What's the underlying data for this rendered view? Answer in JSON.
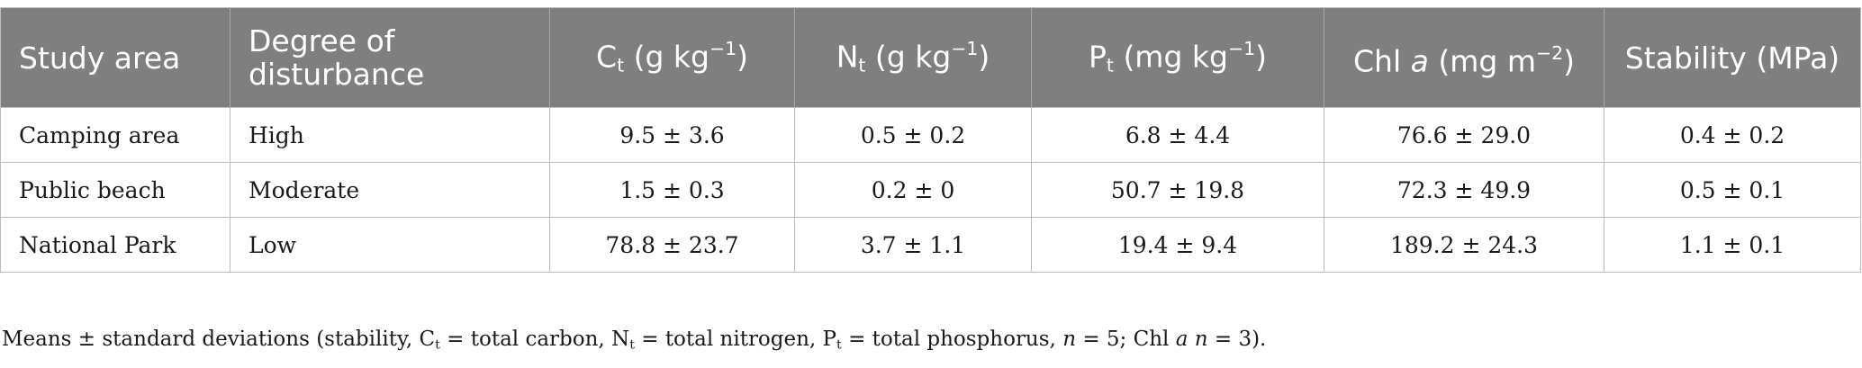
{
  "table": {
    "headers": {
      "study_area": "Study area",
      "disturbance": "Degree of disturbance",
      "ct": {
        "base": "C",
        "sub": "t",
        "unit_pre": "(g kg",
        "sup": "−1",
        "unit_post": ")"
      },
      "nt": {
        "base": "N",
        "sub": "t",
        "unit_pre": "(g kg",
        "sup": "−1",
        "unit_post": ")"
      },
      "pt": {
        "base": "P",
        "sub": "t",
        "unit_pre": "(mg kg",
        "sup": "−1",
        "unit_post": ")"
      },
      "chl": {
        "base": "Chl ",
        "italic": "a",
        "unit_pre": " (mg m",
        "sup": "−2",
        "unit_post": ")"
      },
      "stability": "Stability (MPa)"
    },
    "rows": [
      {
        "area": "Camping area",
        "disturbance": "High",
        "ct": "9.5 ± 3.6",
        "nt": "0.5 ± 0.2",
        "pt": "6.8 ± 4.4",
        "chl": "76.6 ± 29.0",
        "stability": "0.4 ± 0.2"
      },
      {
        "area": "Public beach",
        "disturbance": "Moderate",
        "ct": "1.5 ± 0.3",
        "nt": "0.2 ± 0",
        "pt": "50.7 ± 19.8",
        "chl": "72.3 ± 49.9",
        "stability": "0.5 ± 0.1"
      },
      {
        "area": "National Park",
        "disturbance": "Low",
        "ct": "78.8 ± 23.7",
        "nt": "3.7 ± 1.1",
        "pt": "19.4 ± 9.4",
        "chl": "189.2 ± 24.3",
        "stability": "1.1 ± 0.1"
      }
    ]
  },
  "footnote": {
    "p1": "Means ± standard deviations (stability, C",
    "s1": "t",
    "p2": " = total carbon, N",
    "s2": "t",
    "p3": " = total nitrogen, P",
    "s3": "t",
    "p4": " = total phosphorus, ",
    "n1": "n",
    "p5": " = 5; Chl ",
    "a": "a",
    "p6": " ",
    "n2": "n",
    "p7": " = 3)."
  }
}
